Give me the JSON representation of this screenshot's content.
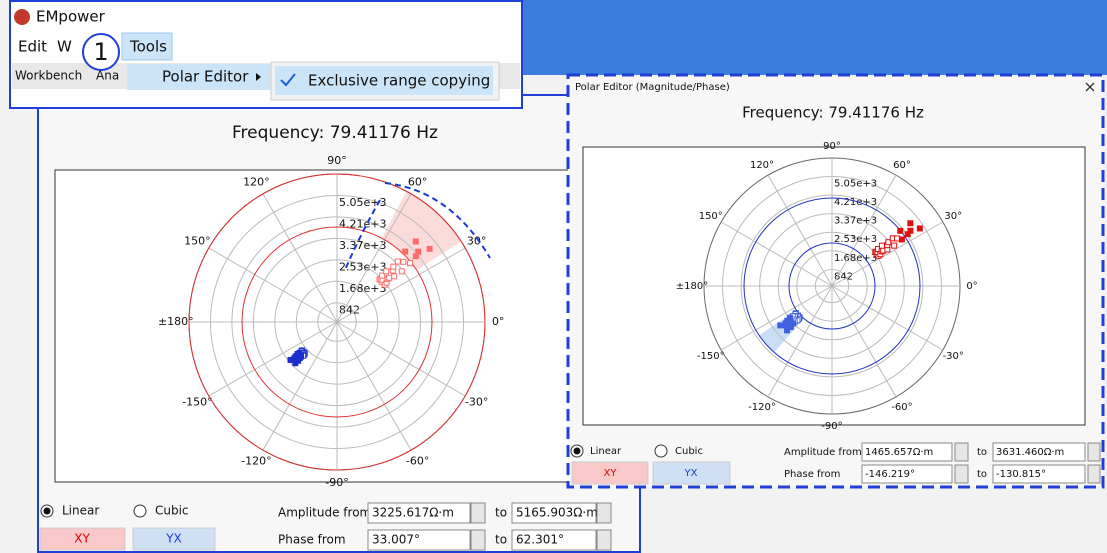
{
  "window": {
    "title": "EMpower",
    "menu": [
      "Edit",
      "W",
      "Tools"
    ],
    "step": "1",
    "tabs": [
      "Workbench",
      "Ana"
    ],
    "submenu": "Polar Editor",
    "option": "Exclusive range copying"
  },
  "left_panel": {
    "title": "Frequency: 79.41176 Hz",
    "angle_labels": [
      "90°",
      "120°",
      "150°",
      "±180°",
      "-150°",
      "-120°",
      "-90°",
      "-60°",
      "-30°",
      "0°",
      "30°",
      "60°"
    ],
    "radius_labels": [
      "5.05e+3",
      "4.21e+3",
      "3.37e+3",
      "2.53e+3",
      "1.68e+3",
      "842"
    ],
    "controls": {
      "interpolation": [
        "Linear",
        "Cubic"
      ],
      "buttons": [
        "XY",
        "YX"
      ],
      "amplitude_label": "Amplitude from",
      "phase_label": "Phase from",
      "to": "to",
      "amplitude_from": "3225.617Ω·m",
      "amplitude_to": "5165.903Ω·m",
      "phase_from": "33.007°",
      "phase_to": "62.301°"
    }
  },
  "right_panel": {
    "window_title": "Polar Editor (Magnitude/Phase)",
    "title": "Frequency: 79.41176 Hz",
    "angle_labels": [
      "90°",
      "120°",
      "150°",
      "±180°",
      "-150°",
      "-120°",
      "-90°",
      "-60°",
      "-30°",
      "0°",
      "30°",
      "60°"
    ],
    "radius_labels": [
      "5.05e+3",
      "4.21e+3",
      "3.37e+3",
      "2.53e+3",
      "1.68e+3",
      "842"
    ],
    "controls": {
      "interpolation": [
        "Linear",
        "Cubic"
      ],
      "buttons": [
        "XY",
        "YX"
      ],
      "amplitude_label": "Amplitude from",
      "phase_label": "Phase from",
      "to": "to",
      "amplitude_from": "1465.657Ω·m",
      "amplitude_to": "3631.460Ω·m",
      "phase_from": "-146.219°",
      "phase_to": "-130.815°"
    }
  }
}
